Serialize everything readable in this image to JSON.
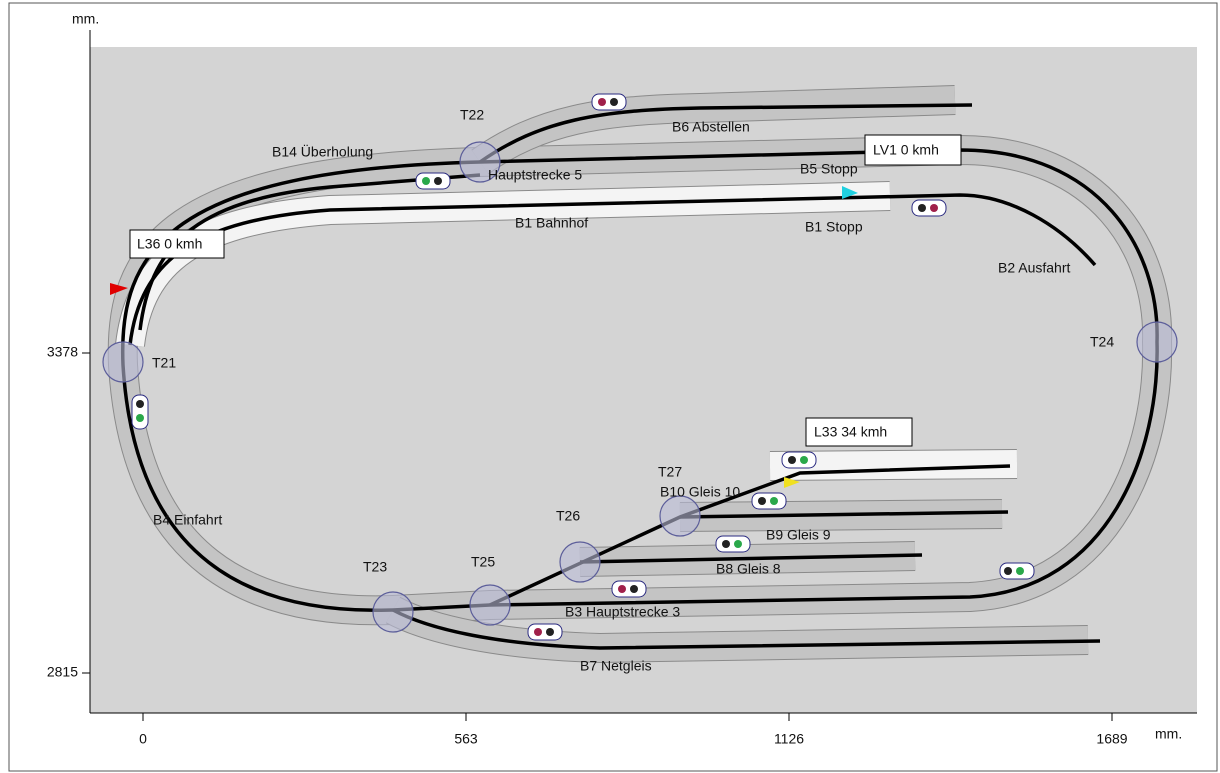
{
  "axes": {
    "x_unit": "mm.",
    "y_unit": "mm.",
    "xticks": [
      0,
      563,
      1126,
      1689
    ],
    "yticks": [
      3378,
      2815
    ]
  },
  "turnouts": [
    "T22",
    "T21",
    "T24",
    "T27",
    "T26",
    "T23",
    "T25"
  ],
  "blocks": [
    "B14 Überholung",
    "Hauptstrecke 5",
    "B6 Abstellen",
    "B5 Stopp",
    "B1 Bahnhof",
    "B1 Stopp",
    "B2 Ausfahrt",
    "B10 Gleis 10",
    "B9 Gleis 9",
    "B4 Einfahrt",
    "B8 Gleis 8",
    "B3 Hauptstrecke 3",
    "B7 Netgleis"
  ],
  "locos": [
    "LV1 0 kmh",
    "L36 0 kmh",
    "L33 34 kmh"
  ]
}
